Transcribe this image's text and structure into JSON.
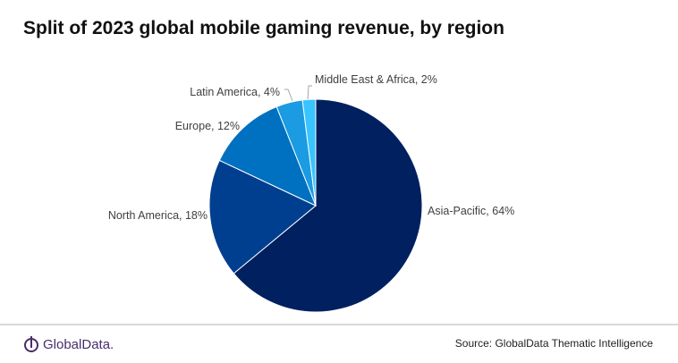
{
  "chart_data": {
    "type": "pie",
    "title": "Split of 2023 global mobile gaming revenue, by region",
    "slices": [
      {
        "label": "Asia-Pacific",
        "value": 64,
        "color": "#002060"
      },
      {
        "label": "North America",
        "value": 18,
        "color": "#003f8f"
      },
      {
        "label": "Europe",
        "value": 12,
        "color": "#0070c0"
      },
      {
        "label": "Latin America",
        "value": 4,
        "color": "#1a9be2"
      },
      {
        "label": "Middle East & Africa",
        "value": 2,
        "color": "#38c4ff"
      }
    ],
    "data_labels": [
      "Asia-Pacific, 64%",
      "North America, 18%",
      "Europe, 12%",
      "Latin America, 4%",
      "Middle East & Africa, 2%"
    ]
  },
  "footer": {
    "logo": "GlobalData.",
    "source": "Source: GlobalData Thematic Intelligence"
  }
}
